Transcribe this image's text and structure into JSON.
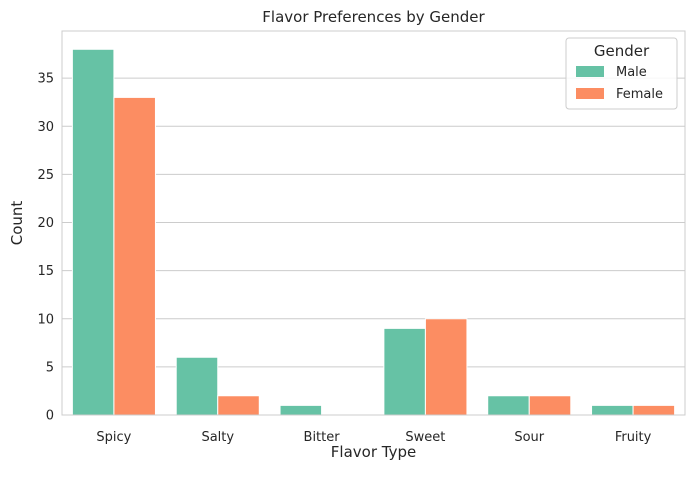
{
  "chart_data": {
    "type": "bar",
    "title": "Flavor Preferences by Gender",
    "xlabel": "Flavor Type",
    "ylabel": "Count",
    "categories": [
      "Spicy",
      "Salty",
      "Bitter",
      "Sweet",
      "Sour",
      "Fruity"
    ],
    "series": [
      {
        "name": "Male",
        "values": [
          38,
          6,
          1,
          9,
          2,
          1
        ],
        "color": "#66c2a5"
      },
      {
        "name": "Female",
        "values": [
          33,
          2,
          0,
          10,
          2,
          1
        ],
        "color": "#fc8d62"
      }
    ],
    "yticks": [
      0,
      5,
      10,
      15,
      20,
      25,
      30,
      35
    ],
    "ylim": [
      0,
      39.9
    ],
    "grid": "y",
    "legend": {
      "title": "Gender",
      "position": "top-right"
    }
  }
}
